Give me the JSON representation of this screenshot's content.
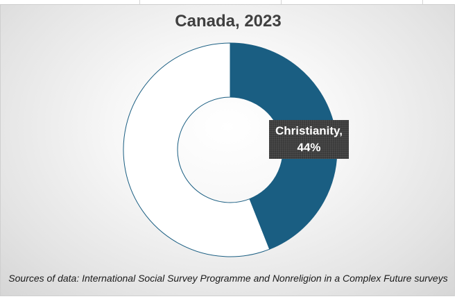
{
  "chart_data": {
    "type": "pie",
    "variant": "donut",
    "title": "Canada, 2023",
    "slices": [
      {
        "label": "Christianity",
        "value": 44,
        "color": "#1a5e82",
        "data_label_text": "Christianity,",
        "data_label_value": "44%"
      },
      {
        "label": "",
        "value": 56,
        "color": "#ffffff"
      }
    ],
    "legend": "none",
    "source": "Sources of data: International Social Survey Programme and Nonreligion in a Complex Future surveys"
  },
  "colors": {
    "accent": "#1a5e82",
    "label_background": "#3a3a3a",
    "title_text": "#404040"
  }
}
